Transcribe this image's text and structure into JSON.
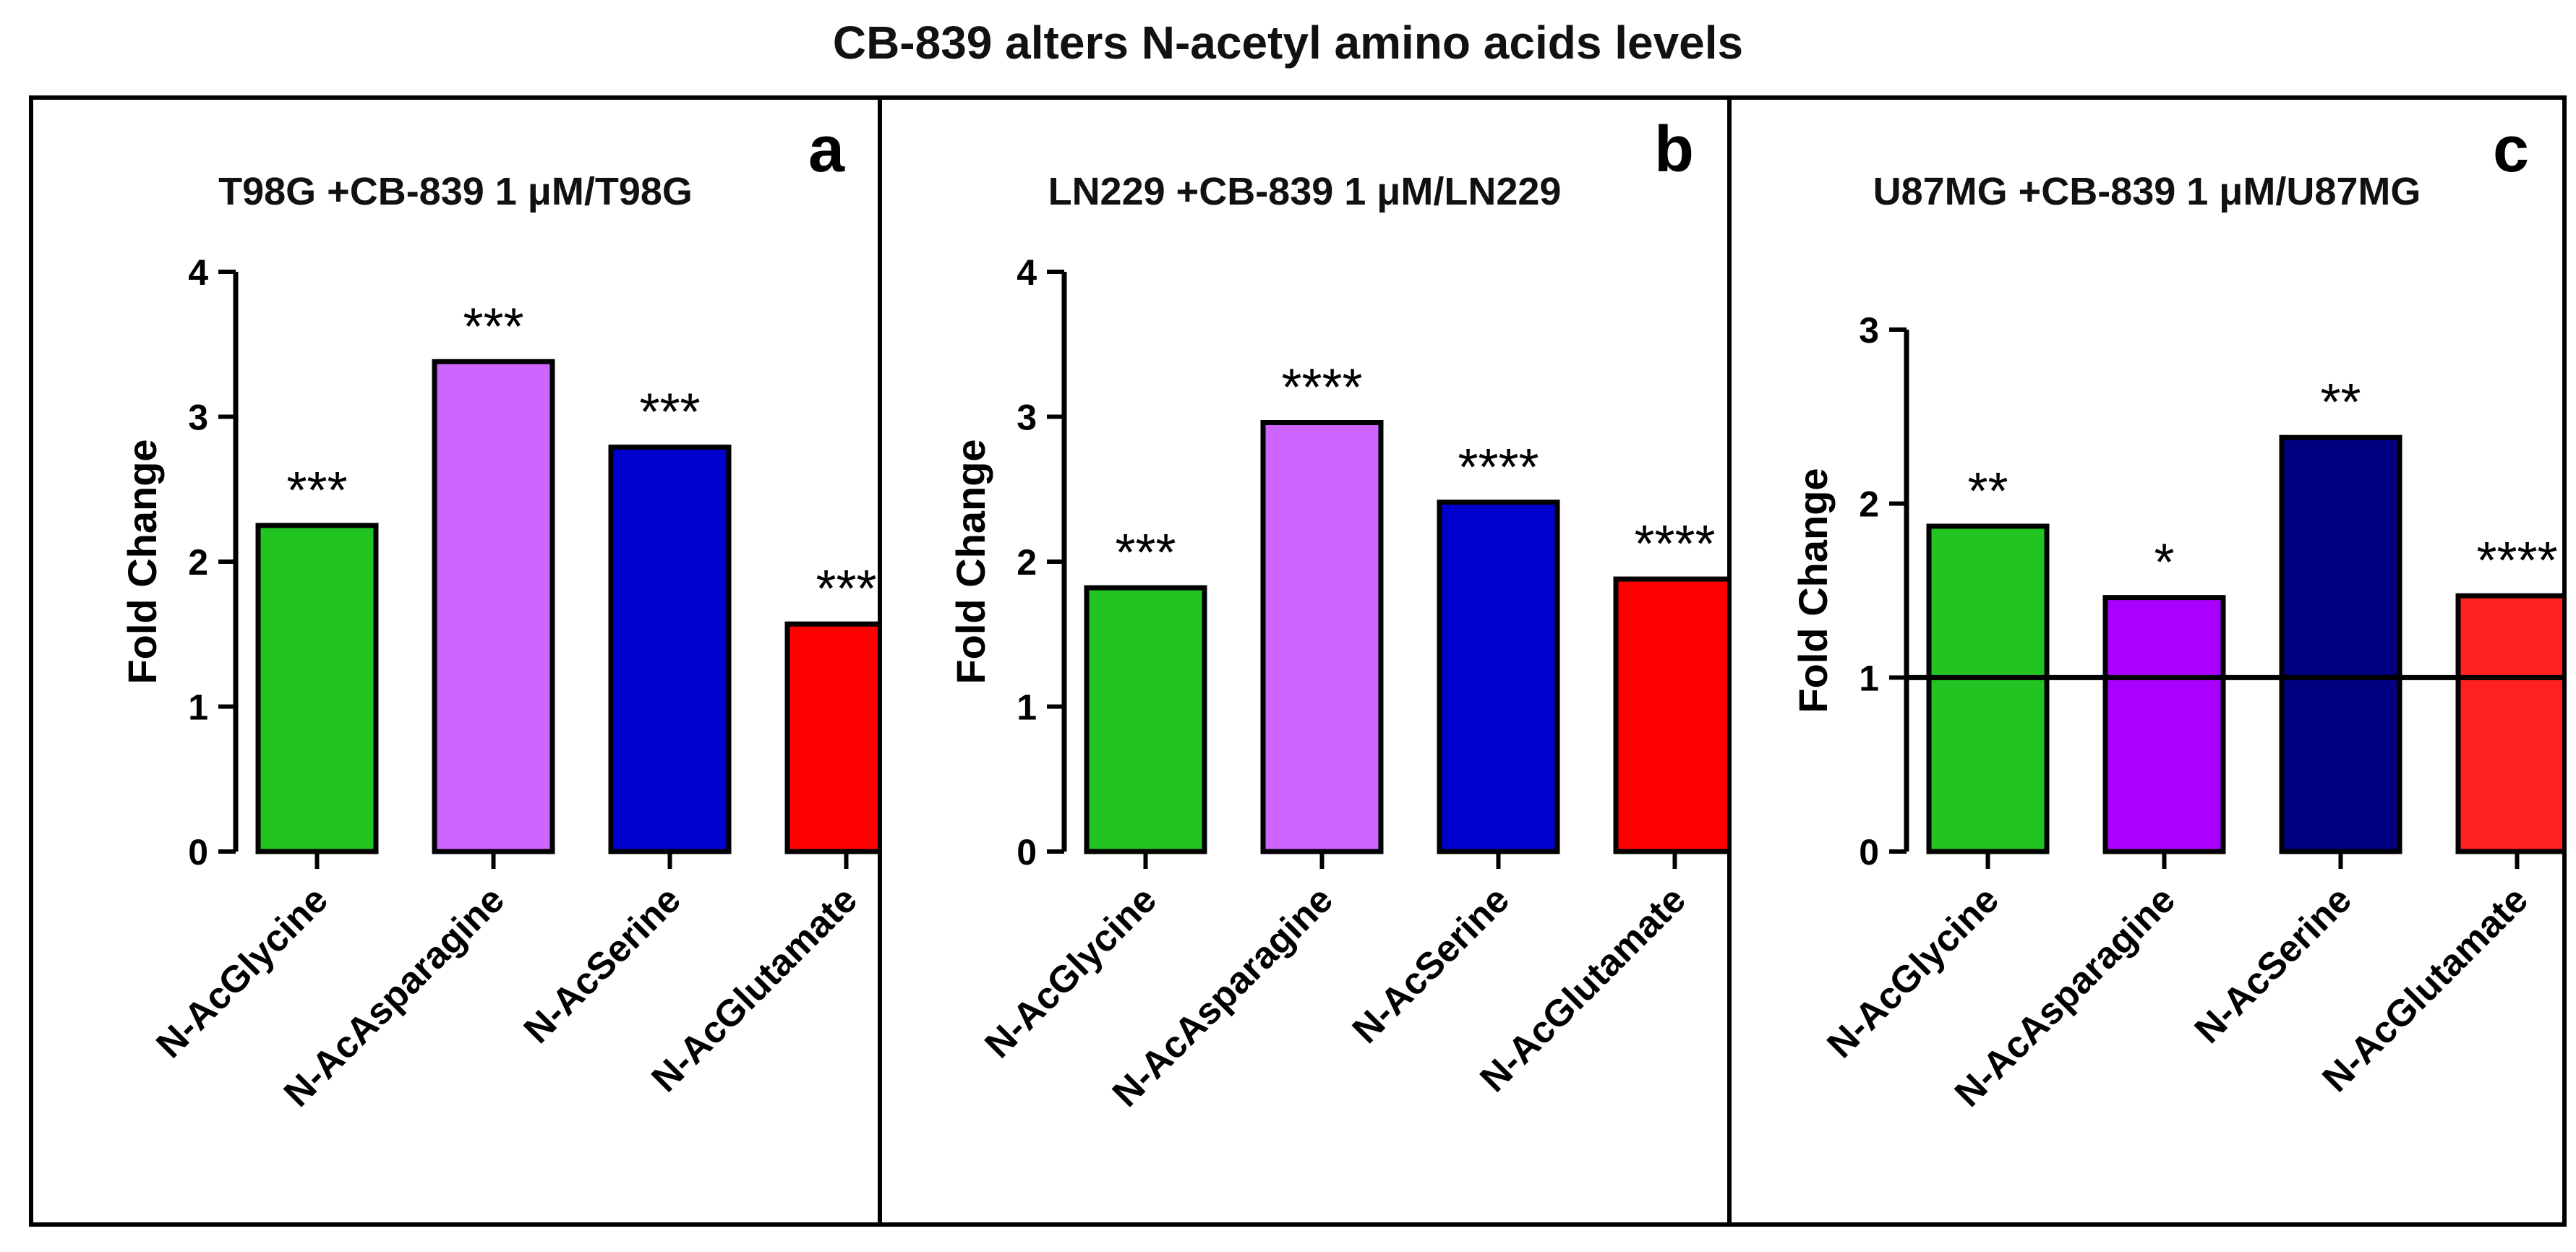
{
  "figure": {
    "title": "CB-839 alters N-acetyl amino acids levels"
  },
  "chart_data": [
    {
      "type": "bar",
      "panel": "a",
      "title": "T98G +CB-839 1 μM/T98G",
      "xlabel": "",
      "ylabel": "Fold Change",
      "ylim": [
        0,
        4
      ],
      "yticks": [
        0,
        1,
        2,
        3,
        4
      ],
      "baseline": null,
      "categories": [
        "N-AcGlycine",
        "N-AcAsparagine",
        "N-AcSerine",
        "N-AcGlutamate"
      ],
      "values": [
        2.25,
        3.38,
        2.79,
        1.57
      ],
      "colors": [
        "#22c422",
        "#cc66ff",
        "#0000cc",
        "#ff0000"
      ],
      "annotations": [
        "***",
        "***",
        "***",
        "***"
      ]
    },
    {
      "type": "bar",
      "panel": "b",
      "title": "LN229 +CB-839 1 μM/LN229",
      "xlabel": "",
      "ylabel": "Fold Change",
      "ylim": [
        0,
        4
      ],
      "yticks": [
        0,
        1,
        2,
        3,
        4
      ],
      "baseline": null,
      "categories": [
        "N-AcGlycine",
        "N-AcAsparagine",
        "N-AcSerine",
        "N-AcGlutamate"
      ],
      "values": [
        1.82,
        2.96,
        2.41,
        1.88
      ],
      "colors": [
        "#22c422",
        "#cc66ff",
        "#0000cc",
        "#ff0000"
      ],
      "annotations": [
        "***",
        "****",
        "****",
        "****"
      ]
    },
    {
      "type": "bar",
      "panel": "c",
      "title": "U87MG +CB-839 1 μM/U87MG",
      "xlabel": "",
      "ylabel": "Fold Change",
      "ylim": [
        0,
        3
      ],
      "yticks": [
        0,
        1,
        2,
        3
      ],
      "baseline": 1,
      "categories": [
        "N-AcGlycine",
        "N-AcAsparagine",
        "N-AcSerine",
        "N-AcGlutamate"
      ],
      "values": [
        1.87,
        1.46,
        2.38,
        1.47
      ],
      "colors": [
        "#22c422",
        "#aa00ff",
        "#000080",
        "#ff2020"
      ],
      "annotations": [
        "**",
        "*",
        "**",
        "****"
      ]
    }
  ]
}
